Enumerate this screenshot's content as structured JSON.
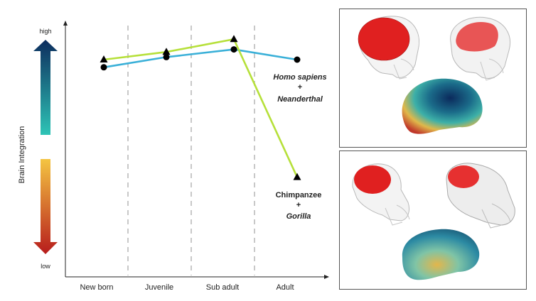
{
  "chart_data": {
    "type": "line",
    "categories": [
      "New born",
      "Juvenile",
      "Sub adult",
      "Adult"
    ],
    "ylabel": "Brain Integration",
    "y_scale_labels": {
      "high": "high",
      "low": "low"
    },
    "ylim": [
      0,
      1
    ],
    "grid": "vertical dashed separators between categories",
    "series": [
      {
        "name_line1": "Homo sapiens",
        "name_plus": "+",
        "name_line2": "Neanderthal",
        "marker": "circle",
        "color": "#3ab0d8",
        "values": [
          0.82,
          0.86,
          0.89,
          0.85
        ]
      },
      {
        "name_line1": "Chimpanzee",
        "name_plus": "+",
        "name_line2": "Gorilla",
        "marker": "triangle",
        "color": "#b6e03a",
        "values": [
          0.85,
          0.88,
          0.93,
          0.39
        ]
      }
    ]
  },
  "colors": {
    "arrow_high_top": "#0d2d5e",
    "arrow_high_bottom": "#2ec4b6",
    "arrow_low_top": "#f4c542",
    "arrow_low_bottom": "#b71c1c"
  }
}
